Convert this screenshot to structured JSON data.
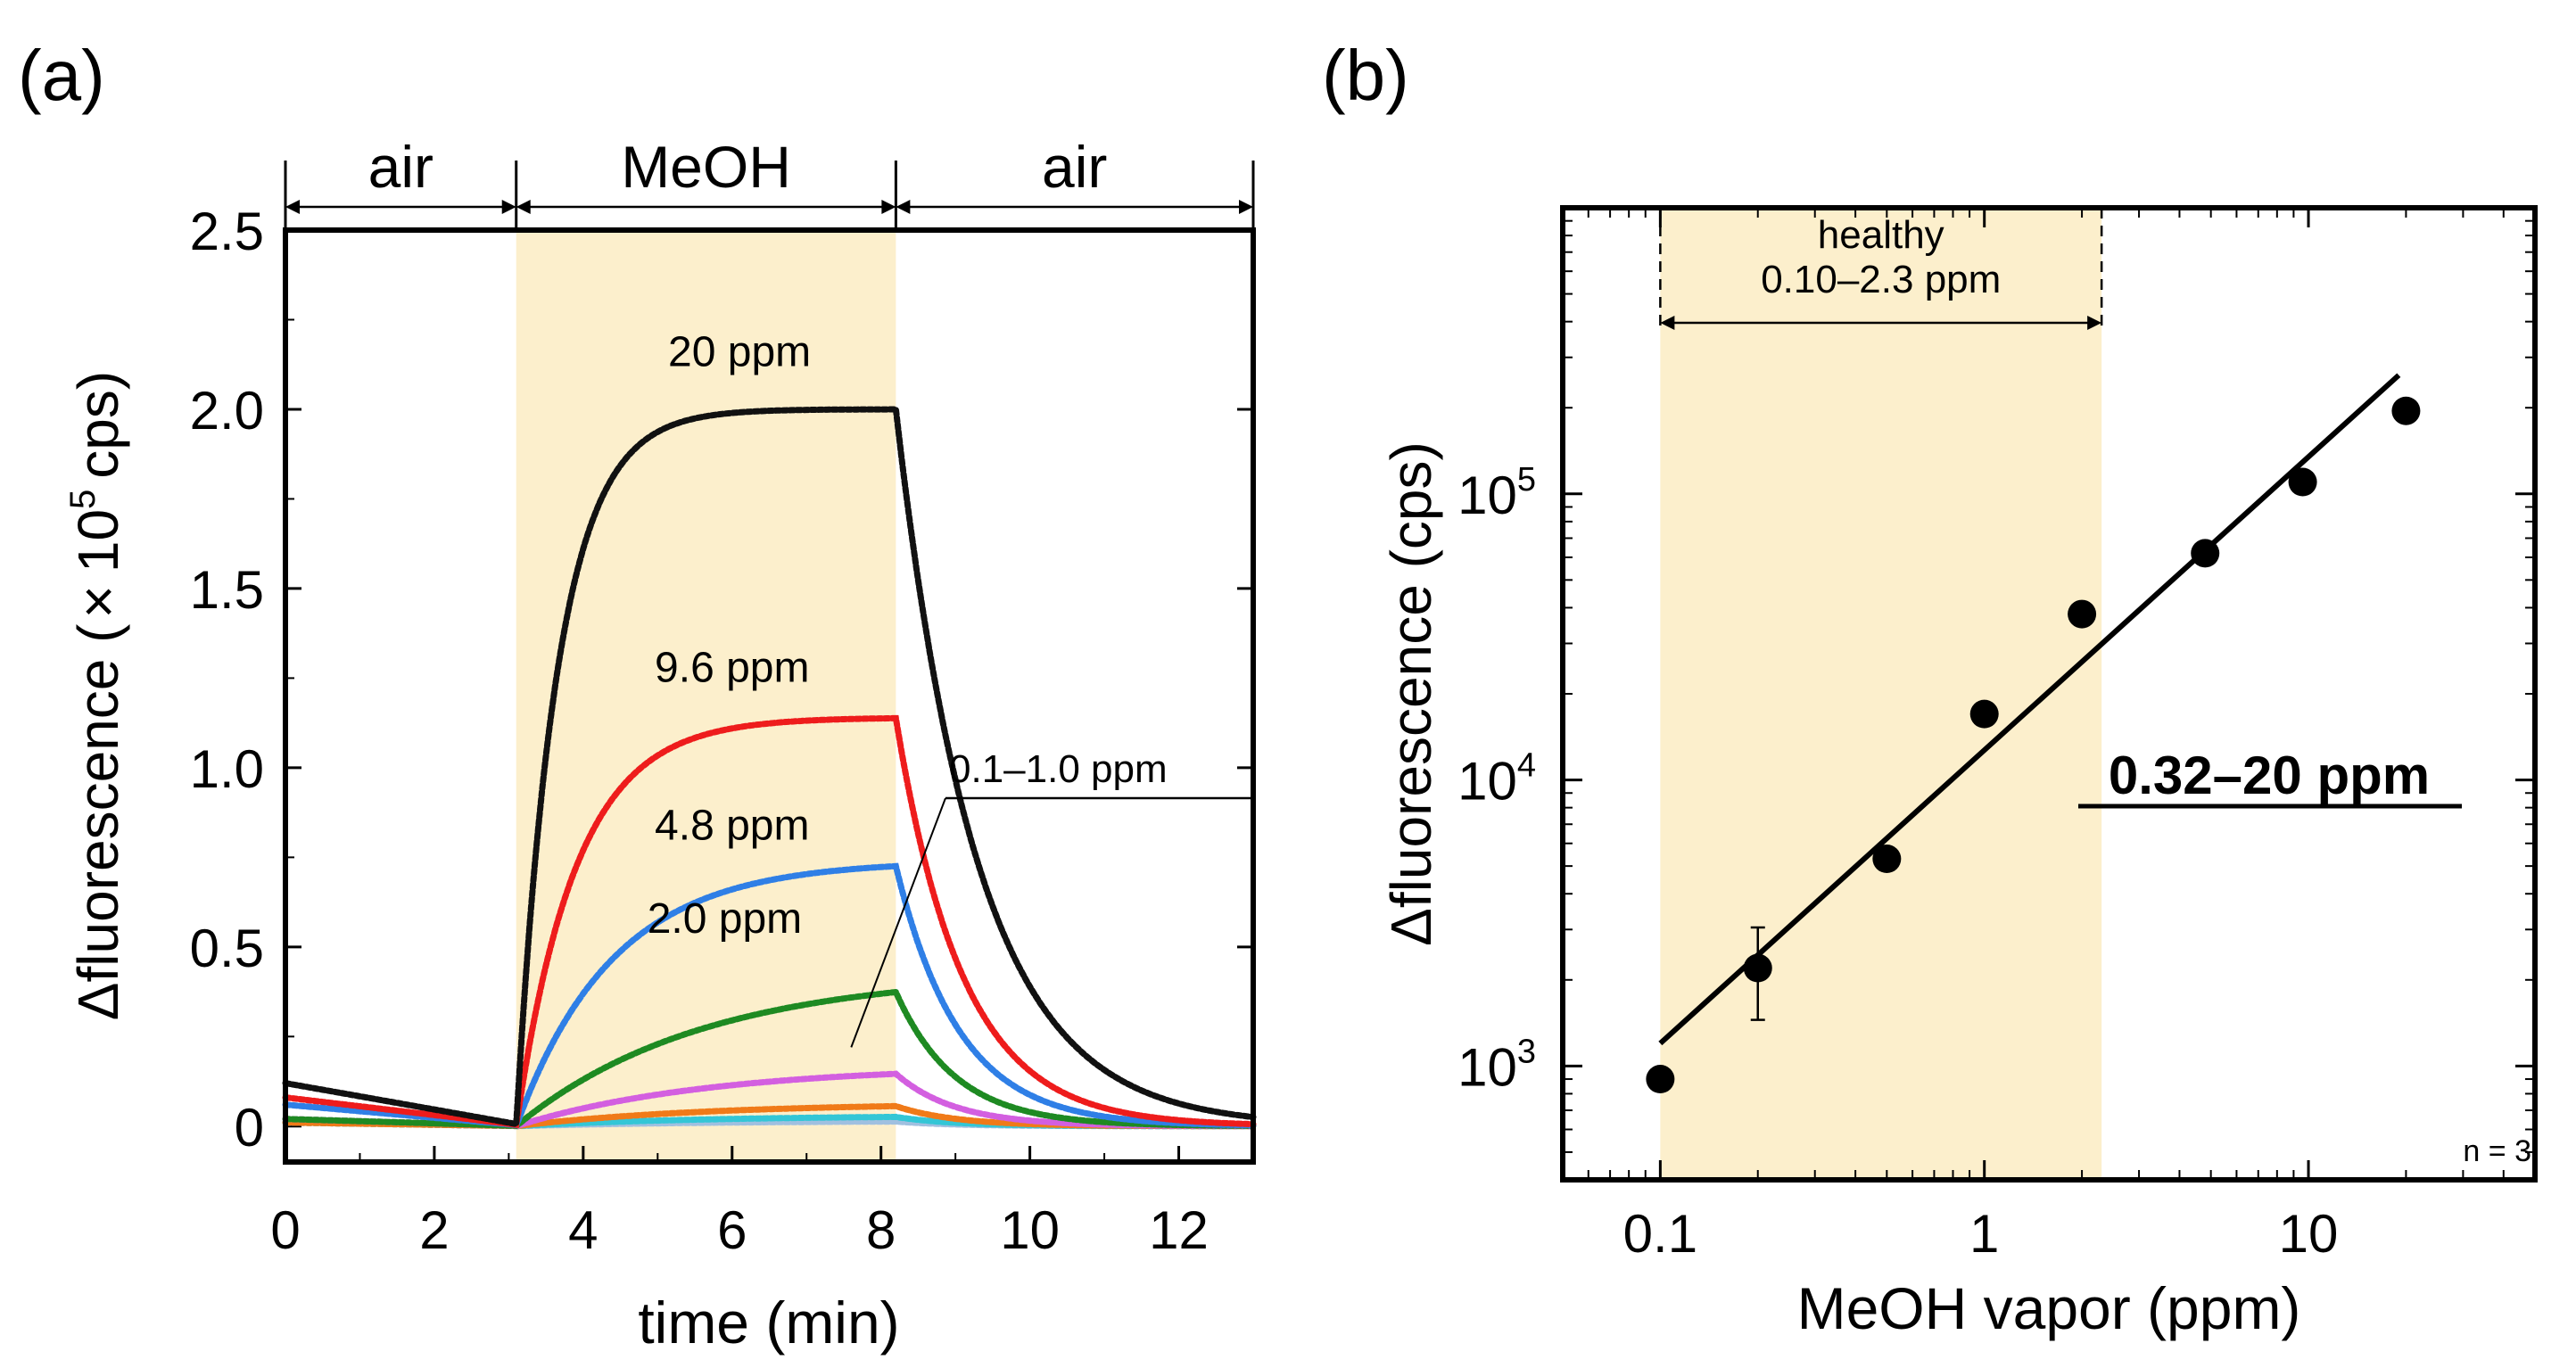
{
  "panels": {
    "a": {
      "label": "(a)"
    },
    "b": {
      "label": "(b)"
    }
  },
  "colors": {
    "shade": "#fcefcc",
    "c20": "#111111",
    "c9_6": "#ee1c1c",
    "c4_8": "#2f7fe6",
    "c2_0": "#1e8a22",
    "c1_0": "#d35fe0",
    "c0_5": "#f07a18",
    "c0_2": "#33c6d6",
    "c0_1": "#a0c0e0"
  },
  "chart_data": [
    {
      "type": "line",
      "panel": "(a)",
      "xlabel": "time (min)",
      "ylabel_prefix": "Δfluorescence (",
      "ylabel_times": "×",
      "ylabel_base": "10",
      "ylabel_exp": "5",
      "ylabel_suffix": "cps)",
      "xlim": [
        0,
        13
      ],
      "ylim": [
        -0.1,
        2.5
      ],
      "xticks": [
        0,
        2,
        4,
        6,
        8,
        10,
        12
      ],
      "xtick_labels": [
        "0",
        "2",
        "4",
        "6",
        "8",
        "10",
        "12"
      ],
      "yticks": [
        0,
        0.5,
        1.0,
        1.5,
        2.0,
        2.5
      ],
      "ytick_labels": [
        "0",
        "0.5",
        "1.0",
        "1.5",
        "2.0",
        "2.5"
      ],
      "exposure_start": 3.1,
      "exposure_end": 8.2,
      "phases": [
        {
          "label": "air",
          "from": 0,
          "to": 3.1
        },
        {
          "label": "MeOH",
          "from": 3.1,
          "to": 8.2
        },
        {
          "label": "air",
          "from": 8.2,
          "to": 13
        }
      ],
      "series": [
        {
          "name": "20 ppm",
          "label": "20 ppm",
          "color_key": "c20",
          "baseline": 0.12,
          "plateau": 2.0,
          "tau_rise": 0.55,
          "tau_fall": 1.1,
          "label_x": 6.1,
          "label_y": 2.12
        },
        {
          "name": "9.6 ppm",
          "label": "9.6 ppm",
          "color_key": "c9_6",
          "baseline": 0.08,
          "plateau": 1.14,
          "tau_rise": 0.8,
          "tau_fall": 0.9,
          "label_x": 6.0,
          "label_y": 1.24
        },
        {
          "name": "4.8 ppm",
          "label": "4.8 ppm",
          "color_key": "c4_8",
          "baseline": 0.06,
          "plateau": 0.74,
          "tau_rise": 1.3,
          "tau_fall": 0.85,
          "label_x": 6.0,
          "label_y": 0.8
        },
        {
          "name": "2.0 ppm",
          "label": "2.0 ppm",
          "color_key": "c2_0",
          "baseline": 0.02,
          "plateau": 0.43,
          "tau_rise": 2.5,
          "tau_fall": 0.8,
          "label_x": 5.9,
          "label_y": 0.54
        },
        {
          "name": "1.0 ppm",
          "label": "",
          "color_key": "c1_0",
          "baseline": 0.02,
          "plateau": 0.17,
          "tau_rise": 2.6,
          "tau_fall": 0.8,
          "label_x": 0,
          "label_y": 0
        },
        {
          "name": "0.5 ppm",
          "label": "",
          "color_key": "c0_5",
          "baseline": 0.01,
          "plateau": 0.065,
          "tau_rise": 2.6,
          "tau_fall": 0.8,
          "label_x": 0,
          "label_y": 0
        },
        {
          "name": "0.2 ppm",
          "label": "",
          "color_key": "c0_2",
          "baseline": 0.01,
          "plateau": 0.03,
          "tau_rise": 2.6,
          "tau_fall": 0.8,
          "label_x": 0,
          "label_y": 0
        },
        {
          "name": "0.1 ppm",
          "label": "",
          "color_key": "c0_1",
          "baseline": 0.01,
          "plateau": 0.015,
          "tau_rise": 2.6,
          "tau_fall": 0.8,
          "label_x": 0,
          "label_y": 0
        }
      ],
      "annotation": {
        "text": "0.1–1.0 ppm",
        "point_to": [
          7.6,
          0.22
        ],
        "text_at": [
          9.8,
          0.95
        ]
      }
    },
    {
      "type": "scatter",
      "panel": "(b)",
      "xlabel": "MeOH vapor (ppm)",
      "ylabel": "Δfluorescence (cps)",
      "xscale": "log",
      "yscale": "log",
      "xlim": [
        0.05,
        50
      ],
      "ylim": [
        400,
        1000000
      ],
      "xticks": [
        0.1,
        1,
        10
      ],
      "xtick_labels": [
        "0.1",
        "1",
        "10"
      ],
      "yticks": [
        1000,
        10000,
        100000
      ],
      "ytick_base": "10",
      "ytick_exps": [
        "3",
        "4",
        "5"
      ],
      "points": [
        {
          "x": 0.1,
          "y": 900
        },
        {
          "x": 0.2,
          "y": 2200,
          "err_low": 1450,
          "err_high": 3050
        },
        {
          "x": 0.5,
          "y": 5300
        },
        {
          "x": 1,
          "y": 17000
        },
        {
          "x": 2,
          "y": 38000
        },
        {
          "x": 4.8,
          "y": 62000
        },
        {
          "x": 9.6,
          "y": 110000
        },
        {
          "x": 20,
          "y": 195000
        }
      ],
      "fit_line": {
        "x0": 0.1,
        "y0": 1200,
        "x1": 19,
        "y1": 260000
      },
      "healthy_range": {
        "from": 0.1,
        "to": 2.3,
        "title": "healthy",
        "range_text": "0.10–2.3 ppm"
      },
      "linear_range_label": "0.32–20 ppm",
      "n_label": "n = 3"
    }
  ]
}
